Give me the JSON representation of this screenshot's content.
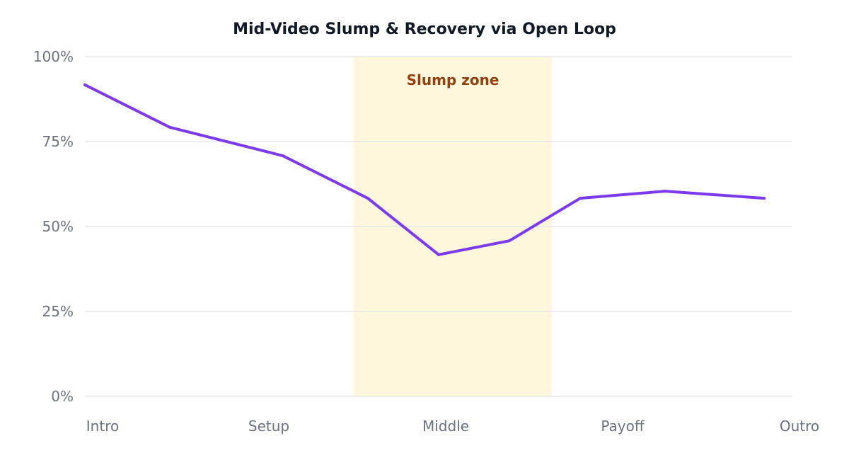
{
  "chart_data": {
    "type": "line",
    "title": "Mid-Video Slump & Recovery via Open Loop",
    "xlabel": "",
    "ylabel": "",
    "ylim": [
      0,
      100
    ],
    "yticks": [
      0,
      25,
      50,
      75,
      100
    ],
    "ytick_labels": [
      "0%",
      "25%",
      "50%",
      "75%",
      "100%"
    ],
    "xlim": [
      0,
      100
    ],
    "xticks": [
      {
        "label": "Intro",
        "x": 0
      },
      {
        "label": "Setup",
        "x": 25
      },
      {
        "label": "Middle",
        "x": 50
      },
      {
        "label": "Payoff",
        "x": 75
      },
      {
        "label": "Outro",
        "x": 100
      }
    ],
    "grid": true,
    "legend": "none",
    "series": [
      {
        "color": "#7c3aed",
        "points": [
          {
            "x": 0,
            "y": 91.7
          },
          {
            "x": 12,
            "y": 79.2
          },
          {
            "x": 28,
            "y": 70.8
          },
          {
            "x": 40,
            "y": 58.3
          },
          {
            "x": 50,
            "y": 41.7
          },
          {
            "x": 60,
            "y": 45.8
          },
          {
            "x": 70,
            "y": 58.3
          },
          {
            "x": 82,
            "y": 60.4
          },
          {
            "x": 96,
            "y": 58.3
          }
        ]
      }
    ],
    "annotations": [
      {
        "type": "shaded-region",
        "label": "Slump zone",
        "x_start": 38,
        "x_end": 66,
        "fill_color": "#fef7dc",
        "label_color": "#92400e"
      }
    ]
  }
}
